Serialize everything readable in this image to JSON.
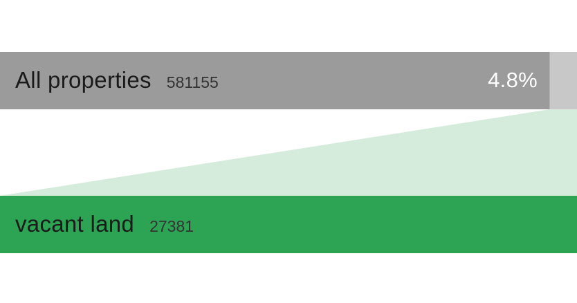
{
  "chart_data": {
    "type": "bar",
    "series": [
      {
        "name": "All properties",
        "value": 581155
      },
      {
        "name": "vacant land",
        "value": 27381
      }
    ],
    "share_label": "4.8%",
    "share": 0.048,
    "colors": {
      "total": "#9b9b9b",
      "share": "#c8c8c8",
      "subset": "#2ca454",
      "connector": "#d5ecdc"
    }
  }
}
